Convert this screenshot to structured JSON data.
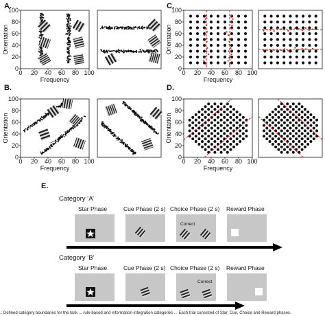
{
  "figure": {
    "panel_labels": [
      "A.",
      "B.",
      "C.",
      "D.",
      "E."
    ],
    "x_axis_label": "Frequency",
    "y_axis_label": "Orientation",
    "ticks": [
      "0",
      "20",
      "40",
      "60",
      "80",
      "100"
    ],
    "caption_fragment": "...Defined category boundaries for the task ... rule-based and information-integration categories ... Each trial consisted of Star, Cue, Choice and Reward phases."
  },
  "colors": {
    "dot": "#111111",
    "red_dot": "#d01b1b",
    "red_line": "#e23030",
    "screen": "#c7c7c7"
  },
  "panel_e": {
    "categories": [
      {
        "label": "Category ‘A’",
        "correct_label": "Correct",
        "correct_side": "left"
      },
      {
        "label": "Category ‘B’",
        "correct_label": "Correct",
        "correct_side": "right"
      }
    ],
    "phases": [
      "Star Phase",
      "Cue Phase (2 s)",
      "Choice Phase (2 s)",
      "Reward Phase"
    ],
    "icons": [
      "star-icon",
      "grating-icon",
      "reward-square-icon",
      "arrow-icon"
    ]
  },
  "chart_data": [
    {
      "panel": "A",
      "side": "left",
      "type": "scatter",
      "xlabel": "Frequency",
      "ylabel": "Orientation",
      "xlim": [
        0,
        100
      ],
      "ylim": [
        0,
        100
      ],
      "series": [
        {
          "cluster": "low-frequency",
          "x_center": 30,
          "y_range": [
            10,
            95
          ]
        },
        {
          "cluster": "high-frequency",
          "x_center": 70,
          "y_range": [
            10,
            95
          ]
        }
      ]
    },
    {
      "panel": "A",
      "side": "right",
      "type": "scatter",
      "xlim": [
        0,
        100
      ],
      "ylim": [
        0,
        100
      ],
      "series": [
        {
          "cluster": "high-orientation",
          "y_center": 70,
          "x_range": [
            5,
            95
          ]
        },
        {
          "cluster": "low-orientation",
          "y_center": 30,
          "x_range": [
            5,
            95
          ]
        }
      ]
    },
    {
      "panel": "B",
      "side": "left",
      "type": "scatter",
      "xlabel": "Frequency",
      "ylabel": "Orientation",
      "xlim": [
        0,
        100
      ],
      "ylim": [
        0,
        100
      ],
      "series": [
        {
          "cluster": "upper-diagonal",
          "from": [
            5,
            45
          ],
          "to": [
            65,
            95
          ]
        },
        {
          "cluster": "lower-diagonal",
          "from": [
            30,
            5
          ],
          "to": [
            95,
            70
          ]
        }
      ]
    },
    {
      "panel": "B",
      "side": "right",
      "type": "scatter",
      "xlim": [
        0,
        100
      ],
      "ylim": [
        0,
        100
      ],
      "series": [
        {
          "cluster": "lower-anti-diagonal",
          "from": [
            5,
            60
          ],
          "to": [
            60,
            5
          ]
        },
        {
          "cluster": "upper-anti-diagonal",
          "from": [
            40,
            95
          ],
          "to": [
            95,
            40
          ]
        }
      ]
    },
    {
      "panel": "C",
      "side": "left",
      "type": "scatter",
      "xlabel": "Frequency",
      "ylabel": "Orientation",
      "xlim": [
        0,
        100
      ],
      "ylim": [
        0,
        100
      ],
      "grid_points": {
        "x": [
          10,
          20,
          30,
          40,
          50,
          60,
          70,
          80,
          90
        ],
        "y": [
          10,
          20,
          30,
          40,
          50,
          60,
          70,
          80,
          90
        ]
      },
      "boundaries": [
        {
          "orientation": "vertical",
          "x": 33
        },
        {
          "orientation": "vertical",
          "x": 67
        }
      ]
    },
    {
      "panel": "C",
      "side": "right",
      "type": "scatter",
      "xlim": [
        0,
        100
      ],
      "ylim": [
        0,
        100
      ],
      "grid_points": {
        "x": [
          10,
          20,
          30,
          40,
          50,
          60,
          70,
          80,
          90
        ],
        "y": [
          10,
          20,
          30,
          40,
          50,
          60,
          70,
          80,
          90
        ]
      },
      "boundaries": [
        {
          "orientation": "horizontal",
          "y": 33
        },
        {
          "orientation": "horizontal",
          "y": 67
        }
      ]
    },
    {
      "panel": "D",
      "side": "left",
      "type": "scatter",
      "xlabel": "Frequency",
      "ylabel": "Orientation",
      "xlim": [
        0,
        100
      ],
      "ylim": [
        0,
        100
      ],
      "grid": "diamond",
      "boundaries": [
        {
          "orientation": "diagonal",
          "offset": -30
        },
        {
          "orientation": "diagonal",
          "offset": 30
        }
      ]
    },
    {
      "panel": "D",
      "side": "right",
      "type": "scatter",
      "xlim": [
        0,
        100
      ],
      "ylim": [
        0,
        100
      ],
      "grid": "diamond",
      "boundaries": [
        {
          "orientation": "anti-diagonal",
          "offset": 70
        },
        {
          "orientation": "anti-diagonal",
          "offset": 130
        }
      ]
    }
  ]
}
